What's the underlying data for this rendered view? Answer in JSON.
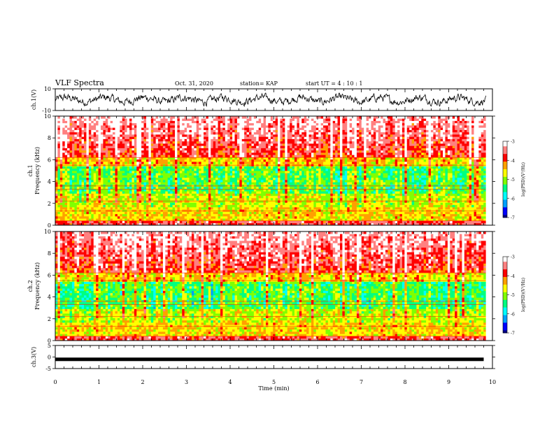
{
  "header": {
    "title": "VLF Spectra",
    "date": "Oct. 31, 2020",
    "station": "station= KAP",
    "start": "start  UT =   4 : 10 : 1"
  },
  "chart_data": [
    {
      "type": "line",
      "panel": "ch1-waveform",
      "ylabel": "ch.1(V)",
      "ylim": [
        -10,
        10
      ],
      "yticks": [
        "10",
        "-10"
      ],
      "xlim": [
        0,
        10
      ],
      "description_values": {
        "typical_amplitude_range": [
          -5,
          5
        ]
      },
      "color": "#000000"
    },
    {
      "type": "heatmap",
      "panel": "ch1-spectrogram",
      "ylabel": "ch.1\nFrequency (kHz)",
      "ylim": [
        0,
        10
      ],
      "yticks": [
        "0",
        "2",
        "4",
        "6",
        "8",
        "10"
      ],
      "xlim": [
        0,
        10
      ],
      "colorbar": {
        "label": "log(PSD)(V²/Hz)",
        "range": [
          -7,
          -3
        ],
        "ticks": [
          "-3",
          "-4",
          "-5",
          "-6",
          "-7"
        ]
      }
    },
    {
      "type": "heatmap",
      "panel": "ch2-spectrogram",
      "ylabel": "ch.2\nFrequency (kHz)",
      "ylim": [
        0,
        10
      ],
      "yticks": [
        "0",
        "2",
        "4",
        "6",
        "8",
        "10"
      ],
      "xlim": [
        0,
        10
      ],
      "colorbar": {
        "label": "log(PSD)(V²/Hz)",
        "range": [
          -7,
          -3
        ],
        "ticks": [
          "-3",
          "-4",
          "-5",
          "-6",
          "-7"
        ]
      }
    },
    {
      "type": "line",
      "panel": "ch3-waveform",
      "ylabel": "ch.3(V)",
      "ylim": [
        -5,
        5
      ],
      "yticks": [
        "5",
        "0",
        "-5"
      ],
      "xlim": [
        0,
        9.8
      ],
      "values_constant": -1,
      "color": "#000000"
    }
  ],
  "xaxis": {
    "label": "Time (min)",
    "ticks": [
      "0",
      "1",
      "2",
      "3",
      "4",
      "5",
      "6",
      "7",
      "8",
      "9",
      "10"
    ]
  },
  "colormap": [
    "#000080",
    "#0000ff",
    "#00a0ff",
    "#00ffff",
    "#00ff80",
    "#80ff00",
    "#ffff00",
    "#ffa000",
    "#ff0000",
    "#ff8080",
    "#ffffff"
  ]
}
